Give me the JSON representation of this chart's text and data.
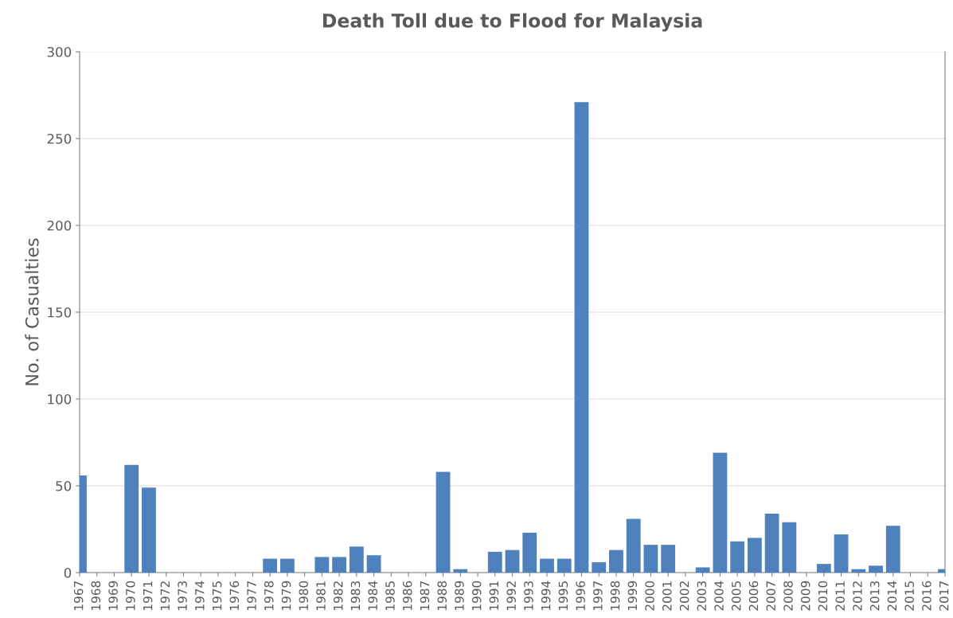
{
  "chart_data": {
    "type": "bar",
    "title": "Death Toll due to Flood for Malaysia",
    "ylabel": "No. of Casualties",
    "categories": [
      "1967",
      "1968",
      "1969",
      "1970",
      "1971",
      "1972",
      "1973",
      "1974",
      "1975",
      "1976",
      "1977",
      "1978",
      "1979",
      "1980",
      "1981",
      "1982",
      "1983",
      "1984",
      "1985",
      "1986",
      "1987",
      "1988",
      "1989",
      "1990",
      "1991",
      "1992",
      "1993",
      "1994",
      "1995",
      "1996",
      "1997",
      "1998",
      "1999",
      "2000",
      "2001",
      "2002",
      "2003",
      "2004",
      "2005",
      "2006",
      "2007",
      "2008",
      "2009",
      "2010",
      "2011",
      "2012",
      "2013",
      "2014",
      "2015",
      "2016",
      "2017"
    ],
    "values": [
      56,
      0,
      0,
      62,
      49,
      0,
      0,
      0,
      0,
      0,
      0,
      8,
      8,
      0,
      9,
      9,
      15,
      10,
      0,
      0,
      0,
      58,
      2,
      0,
      12,
      13,
      23,
      8,
      8,
      271,
      6,
      13,
      31,
      16,
      16,
      0,
      3,
      69,
      18,
      20,
      34,
      29,
      0,
      5,
      22,
      2,
      4,
      27,
      0,
      0,
      2
    ],
    "color": "#4f81bd",
    "ylim": [
      0,
      300
    ],
    "yticks": [
      0,
      50,
      100,
      150,
      200,
      250,
      300
    ],
    "grid": "y"
  }
}
